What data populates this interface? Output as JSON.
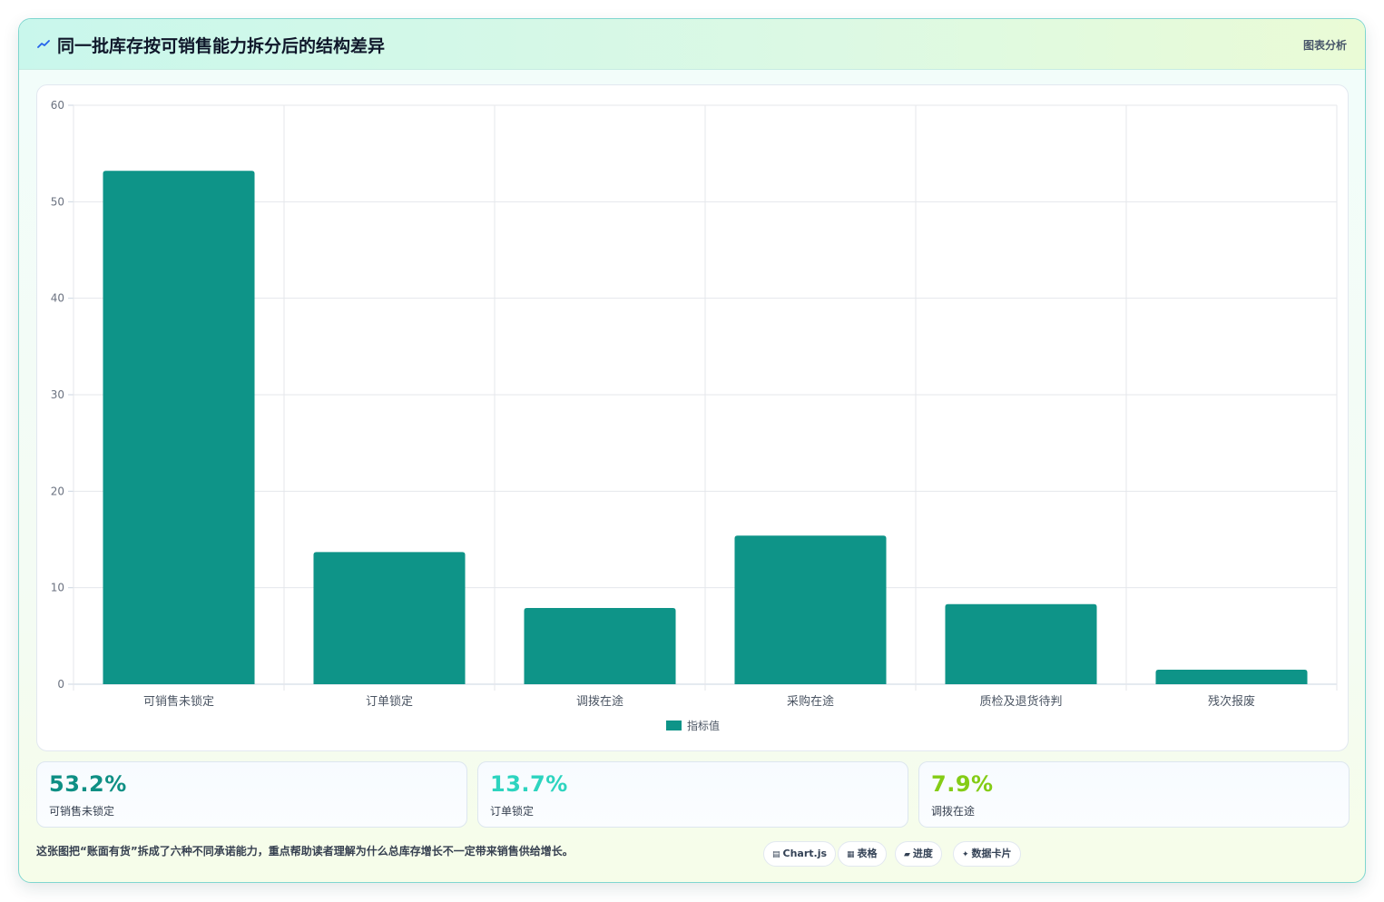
{
  "header": {
    "title": "同一批库存按可销售能力拆分后的结构差异",
    "tag": "图表分析",
    "icon": "trend-icon"
  },
  "chart_data": {
    "type": "bar",
    "categories": [
      "可销售未锁定",
      "订单锁定",
      "调拨在途",
      "采购在途",
      "质检及退货待判",
      "残次报废"
    ],
    "series": [
      {
        "name": "指标值",
        "values": [
          53.2,
          13.7,
          7.9,
          15.4,
          8.3,
          1.5
        ],
        "color": "#0e9488"
      }
    ],
    "yticks": [
      0,
      10,
      20,
      30,
      40,
      50,
      60
    ],
    "ylim": [
      0,
      60
    ],
    "grid": true,
    "legend": "bottom"
  },
  "stats": [
    {
      "value": "53.2%",
      "label": "可销售未锁定",
      "color": "#0e8f84"
    },
    {
      "value": "13.7%",
      "label": "订单锁定",
      "color": "#2dd4bf"
    },
    {
      "value": "7.9%",
      "label": "调拨在途",
      "color": "#84cc16"
    }
  ],
  "footnote": "这张图把“账面有货”拆成了六种不同承诺能力，重点帮助读者理解为什么总库存增长不一定带来销售供给增长。",
  "chips": [
    {
      "icon": "▤",
      "label": "Chart.js"
    },
    {
      "icon": "▦",
      "label": "表格"
    },
    {
      "icon": "▰",
      "label": "进度"
    },
    {
      "icon": "✦",
      "label": "数据卡片"
    }
  ]
}
